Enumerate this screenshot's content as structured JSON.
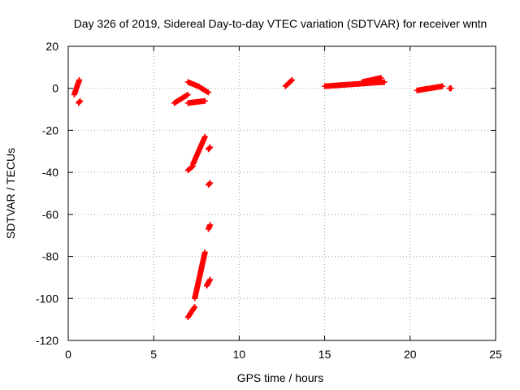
{
  "chart_data": {
    "type": "scatter",
    "title": "Day 326 of 2019, Sidereal Day-to-day VTEC variation (SDTVAR) for receiver wntn",
    "xlabel": "GPS time / hours",
    "ylabel": "SDTVAR / TECUs",
    "xlim": [
      0,
      25
    ],
    "ylim": [
      -120,
      20
    ],
    "xticks": [
      "0",
      "5",
      "10",
      "15",
      "20",
      "25"
    ],
    "yticks": [
      "20",
      "0",
      "-20",
      "-40",
      "-60",
      "-80",
      "-100",
      "-120"
    ],
    "grid": true,
    "marker": "plus",
    "color": "#ff0000",
    "series": [
      {
        "name": "SDTVAR",
        "segments": [
          {
            "x": [
              0.35,
              0.65
            ],
            "y": [
              -3,
              4
            ]
          },
          {
            "x": [
              0.6,
              0.7
            ],
            "y": [
              -7,
              -6
            ]
          },
          {
            "x": [
              6.2,
              7.0
            ],
            "y": [
              -7,
              -3
            ]
          },
          {
            "x": [
              7.0,
              8.0
            ],
            "y": [
              -7,
              -6
            ]
          },
          {
            "x": [
              7.0,
              7.6
            ],
            "y": [
              3,
              1
            ]
          },
          {
            "x": [
              7.6,
              8.2
            ],
            "y": [
              1,
              -2
            ]
          },
          {
            "x": [
              7.0,
              7.3
            ],
            "y": [
              -39,
              -37
            ]
          },
          {
            "x": [
              7.3,
              8.0
            ],
            "y": [
              -36,
              -23
            ]
          },
          {
            "x": [
              8.2,
              8.3
            ],
            "y": [
              -29,
              -28
            ]
          },
          {
            "x": [
              8.2,
              8.3
            ],
            "y": [
              -46,
              -45
            ]
          },
          {
            "x": [
              8.2,
              8.3
            ],
            "y": [
              -67,
              -65
            ]
          },
          {
            "x": [
              7.0,
              7.4
            ],
            "y": [
              -109,
              -104
            ]
          },
          {
            "x": [
              7.4,
              8.0
            ],
            "y": [
              -100,
              -78
            ]
          },
          {
            "x": [
              8.1,
              8.3
            ],
            "y": [
              -94,
              -91
            ]
          },
          {
            "x": [
              12.7,
              13.1
            ],
            "y": [
              1,
              4
            ]
          },
          {
            "x": [
              15.0,
              18.5
            ],
            "y": [
              1,
              3
            ]
          },
          {
            "x": [
              17.2,
              18.3
            ],
            "y": [
              3,
              5
            ]
          },
          {
            "x": [
              20.4,
              21.9
            ],
            "y": [
              -1,
              1
            ]
          },
          {
            "x": [
              22.3,
              22.4
            ],
            "y": [
              0,
              0
            ]
          }
        ]
      }
    ]
  }
}
